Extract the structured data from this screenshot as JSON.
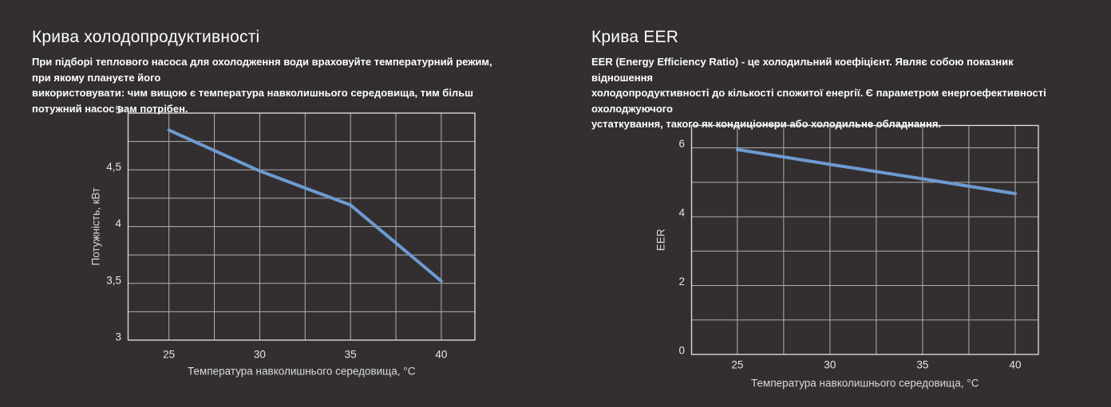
{
  "page": {
    "background_color": "#332f30",
    "accent_line_color": "#6d9bd1"
  },
  "panels": [
    {
      "title": "Крива холодопродуктивності",
      "description": "При підборі теплового насоса для охолодження води враховуйте температурний режим, при якому плануєте його\nвикористовувати: чим вищою є температура навколишнього середовища, тим більш потужний насос вам потрібен."
    },
    {
      "title": "Крива EER",
      "description": "EER (Energy Efficiency Ratio) - це холодильний коефіцієнт. Являє собою показник відношення\nхолодопродуктивності до кількості спожитої енергії. Є параметром енергоефективності охолоджуючого\nустаткування, такого як кондиціонери або холодильне обладнання."
    }
  ],
  "chart_data": [
    {
      "type": "line",
      "title": "Крива холодопродуктивності",
      "x": [
        25,
        30,
        35,
        40
      ],
      "values": [
        4.85,
        4.49,
        4.19,
        3.52
      ],
      "xlabel": "Температура навколишнього середовища, °C",
      "ylabel": "Потужність, кВт",
      "xlim": [
        22.75,
        41.85
      ],
      "ylim": [
        3,
        5
      ],
      "x_gridlines": [
        25,
        27.5,
        30,
        32.5,
        35,
        37.5,
        40
      ],
      "y_gridlines": [
        3.25,
        3.5,
        3.75,
        4,
        4.25,
        4.5,
        4.75
      ],
      "x_ticks": [
        {
          "v": 25,
          "label": "25"
        },
        {
          "v": 30,
          "label": "30"
        },
        {
          "v": 35,
          "label": "35"
        },
        {
          "v": 40,
          "label": "40"
        }
      ],
      "y_ticks": [
        {
          "v": 5,
          "label": "5"
        },
        {
          "v": 4.5,
          "label": "4,5"
        },
        {
          "v": 4,
          "label": "4"
        },
        {
          "v": 3.5,
          "label": "3,5"
        },
        {
          "v": 3,
          "label": "3"
        }
      ],
      "grid": true,
      "legend": "none",
      "line_color": "#6d9bd1",
      "grid_color": "#b0b0b0",
      "frame_color": "#e3e3e3"
    },
    {
      "type": "line",
      "title": "Крива EER",
      "x": [
        25,
        30,
        35,
        40
      ],
      "values": [
        5.95,
        5.52,
        5.1,
        4.67
      ],
      "xlabel": "Температура навколишнього середовища, °C",
      "ylabel": "EER",
      "xlim": [
        22.53,
        41.25
      ],
      "ylim": [
        0,
        6.65
      ],
      "x_gridlines": [
        25,
        27.5,
        30,
        32.5,
        35,
        37.5,
        40
      ],
      "y_gridlines": [
        1,
        2,
        3,
        4,
        5,
        6
      ],
      "x_ticks": [
        {
          "v": 25,
          "label": "25"
        },
        {
          "v": 30,
          "label": "30"
        },
        {
          "v": 35,
          "label": "35"
        },
        {
          "v": 40,
          "label": "40"
        }
      ],
      "y_ticks": [
        {
          "v": 6,
          "label": "6"
        },
        {
          "v": 4,
          "label": "4"
        },
        {
          "v": 2,
          "label": "2"
        },
        {
          "v": 0,
          "label": "0"
        }
      ],
      "grid": true,
      "legend": "none",
      "line_color": "#6d9bd1",
      "grid_color": "#b0b0b0",
      "frame_color": "#e3e3e3"
    }
  ]
}
